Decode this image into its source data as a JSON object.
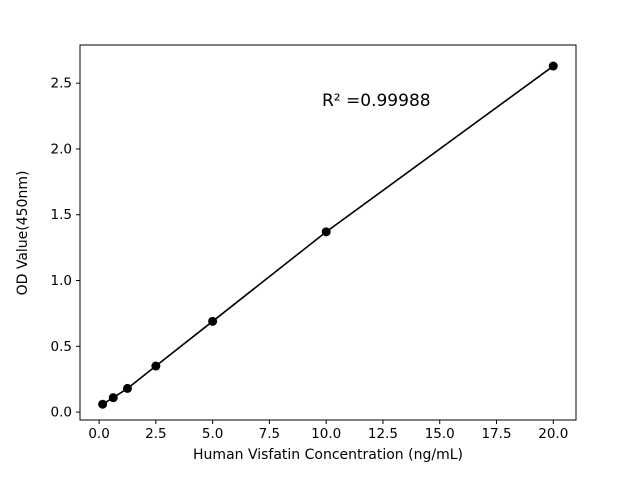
{
  "chart_data": {
    "type": "scatter",
    "title": "",
    "xlabel": "Human Visfatin Concentration (ng/mL)",
    "ylabel": "OD Value(450nm)",
    "annotation": "R² =0.99988",
    "x": [
      0.156,
      0.625,
      1.25,
      2.5,
      5.0,
      10.0,
      20.0
    ],
    "y": [
      0.06,
      0.11,
      0.18,
      0.35,
      0.69,
      1.37,
      2.63
    ],
    "fit_line": true,
    "xlim": [
      -0.84,
      21.0
    ],
    "ylim": [
      -0.06,
      2.79
    ],
    "xticks": [
      0,
      2.5,
      5,
      7.5,
      10,
      12.5,
      15,
      17.5,
      20
    ],
    "xtick_labels": [
      "0.0",
      "2.5",
      "5.0",
      "7.5",
      "10.0",
      "12.5",
      "15.0",
      "17.5",
      "20.0"
    ],
    "yticks": [
      0,
      0.5,
      1,
      1.5,
      2,
      2.5
    ],
    "ytick_labels": [
      "0.0",
      "0.5",
      "1.0",
      "1.5",
      "2.0",
      "2.5"
    ],
    "grid": false,
    "legend": null,
    "line_color": "#000000",
    "marker_color": "#000000",
    "axis_color": "#000000",
    "background_color": "#ffffff"
  }
}
